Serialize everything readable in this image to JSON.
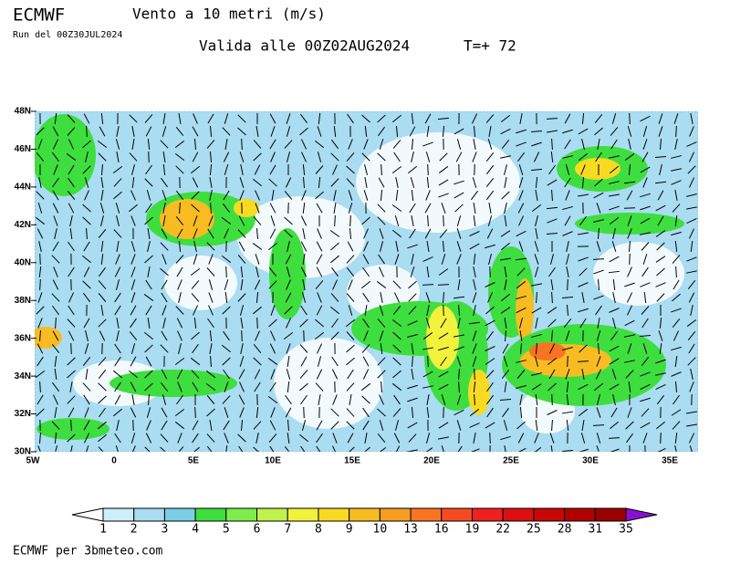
{
  "header": {
    "model": "ECMWF",
    "title": "Vento a 10 metri (m/s)",
    "run": "Run del 00Z30JUL2024",
    "valid": "Valida alle 00Z02AUG2024",
    "step": "T=+ 72"
  },
  "map": {
    "lat_labels": [
      "48N",
      "46N",
      "44N",
      "42N",
      "40N",
      "38N",
      "36N",
      "34N",
      "32N",
      "30N"
    ],
    "lon_labels": [
      "5W",
      "0",
      "5E",
      "10E",
      "15E",
      "20E",
      "25E",
      "30E",
      "35E"
    ]
  },
  "colorbar": {
    "labels": [
      1,
      2,
      3,
      4,
      5,
      6,
      7,
      8,
      9,
      10,
      13,
      16,
      19,
      22,
      25,
      28,
      31,
      35
    ],
    "colors": [
      "#cdeefb",
      "#aadcf2",
      "#7ccde6",
      "#3ede3e",
      "#7fec4c",
      "#bff24a",
      "#f2f23c",
      "#f8da22",
      "#f8bc22",
      "#f89c22",
      "#f87422",
      "#f84a20",
      "#ee2020",
      "#dc1010",
      "#c80808",
      "#b00000",
      "#9a0000"
    ],
    "under_color": "#ffffff",
    "over_color": "#8a10d0"
  },
  "footer": "ECMWF per 3bmeteo.com"
}
